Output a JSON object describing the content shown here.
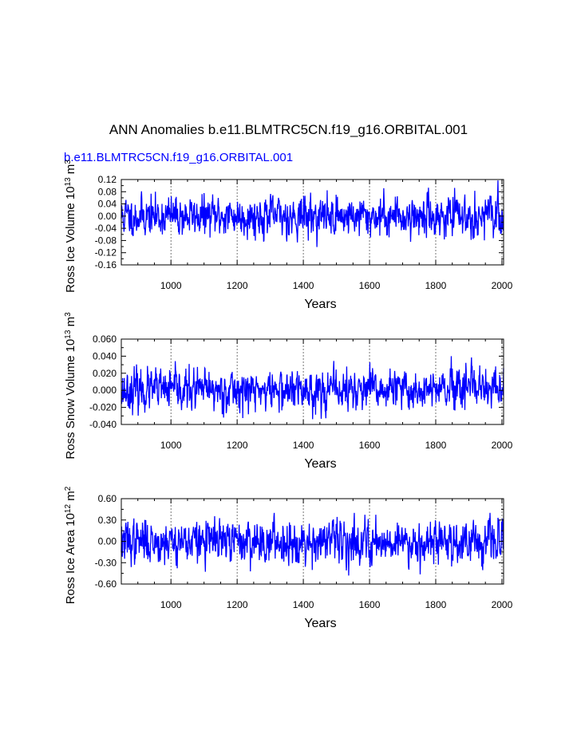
{
  "title": "ANN Anomalies b.e11.BLMTRC5CN.f19_g16.ORBITAL.001",
  "case_name": "b.e11.BLMTRC5CN.f19_g16.ORBITAL.001",
  "colors": {
    "series": "#0000ff",
    "axis": "#000000",
    "grid": "#555555"
  },
  "chart_data": [
    {
      "type": "line",
      "name": "ross-ice-volume",
      "ylabel": {
        "main": "Ross Ice Volume 10",
        "exp": "13",
        "unit": " m",
        "unit_exp": "3"
      },
      "xlabel": "Years",
      "xlim": [
        850,
        2005
      ],
      "ylim": [
        -0.16,
        0.12
      ],
      "x_ticks": [
        1000,
        1200,
        1400,
        1600,
        1800,
        2000
      ],
      "x_tick_labels": [
        "1000",
        "1200",
        "1400",
        "1600",
        "1800",
        "2000"
      ],
      "y_ticks": [
        -0.16,
        -0.12,
        -0.08,
        -0.04,
        0.0,
        0.04,
        0.08,
        0.12
      ],
      "y_tick_labels": [
        "-0.16",
        "-0.12",
        "-0.08",
        "-0.04",
        "0.00",
        "0.04",
        "0.08",
        "0.12"
      ],
      "grid_x": true,
      "series": [
        {
          "name": "Ross Ice Volume anomaly",
          "amplitude": 0.03,
          "range": [
            -0.125,
            0.12
          ],
          "seed": 11
        }
      ]
    },
    {
      "type": "line",
      "name": "ross-snow-volume",
      "ylabel": {
        "main": "Ross Snow Volume 10",
        "exp": "13",
        "unit": " m",
        "unit_exp": "3"
      },
      "xlabel": "Years",
      "xlim": [
        850,
        2005
      ],
      "ylim": [
        -0.04,
        0.06
      ],
      "x_ticks": [
        1000,
        1200,
        1400,
        1600,
        1800,
        2000
      ],
      "x_tick_labels": [
        "1000",
        "1200",
        "1400",
        "1600",
        "1800",
        "2000"
      ],
      "y_ticks": [
        -0.04,
        -0.02,
        0.0,
        0.02,
        0.04,
        0.06
      ],
      "y_tick_labels": [
        "-0.040",
        "-0.020",
        "0.000",
        "0.020",
        "0.040",
        "0.060"
      ],
      "grid_x": true,
      "series": [
        {
          "name": "Ross Snow Volume anomaly",
          "amplitude": 0.011,
          "range": [
            -0.038,
            0.04
          ],
          "seed": 23
        }
      ]
    },
    {
      "type": "line",
      "name": "ross-ice-area",
      "ylabel": {
        "main": "Ross Ice Area 10",
        "exp": "12",
        "unit": " m",
        "unit_exp": "2"
      },
      "xlabel": "Years",
      "xlim": [
        850,
        2005
      ],
      "ylim": [
        -0.6,
        0.6
      ],
      "x_ticks": [
        1000,
        1200,
        1400,
        1600,
        1800,
        2000
      ],
      "x_tick_labels": [
        "1000",
        "1200",
        "1400",
        "1600",
        "1800",
        "2000"
      ],
      "y_ticks": [
        -0.6,
        -0.3,
        0.0,
        0.3,
        0.6
      ],
      "y_tick_labels": [
        "-0.60",
        "-0.30",
        "0.00",
        "0.30",
        "0.60"
      ],
      "grid_x": true,
      "series": [
        {
          "name": "Ross Ice Area anomaly",
          "amplitude": 0.14,
          "range": [
            -0.56,
            0.4
          ],
          "seed": 37
        }
      ]
    }
  ]
}
